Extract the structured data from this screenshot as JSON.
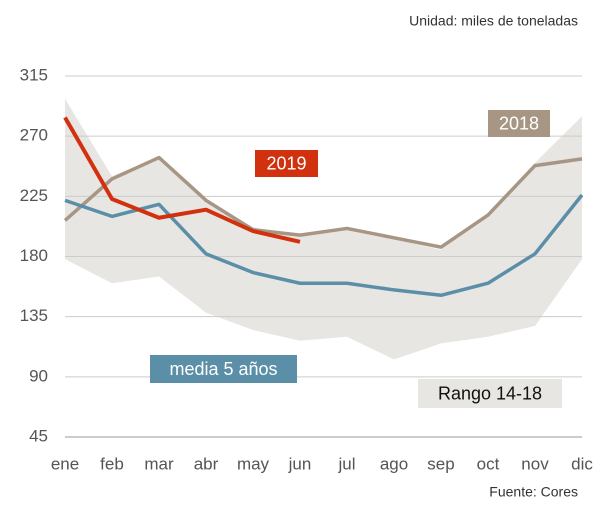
{
  "chart_data": {
    "type": "line",
    "unit_note": "Unidad: miles de toneladas",
    "source": "Fuente: Cores",
    "categories": [
      "ene",
      "feb",
      "mar",
      "abr",
      "may",
      "jun",
      "jul",
      "ago",
      "sep",
      "oct",
      "nov",
      "dic"
    ],
    "range": {
      "name": "Rango 14-18",
      "color": "#e8e6e3",
      "upper": [
        298,
        240,
        255,
        222,
        202,
        195,
        200,
        193,
        185,
        212,
        250,
        285
      ],
      "lower": [
        178,
        160,
        165,
        138,
        125,
        117,
        120,
        103,
        115,
        120,
        128,
        178
      ]
    },
    "series": [
      {
        "name": "2018",
        "color": "#a89684",
        "values": [
          207,
          238,
          254,
          222,
          200,
          196,
          201,
          194,
          187,
          211,
          248,
          253
        ]
      },
      {
        "name": "media 5 años",
        "color": "#5b8fa8",
        "values": [
          222,
          210,
          219,
          182,
          168,
          160,
          160,
          155,
          151,
          160,
          182,
          226
        ]
      },
      {
        "name": "2019",
        "color": "#d1310e",
        "values": [
          284,
          223,
          209,
          215,
          199,
          191,
          null,
          null,
          null,
          null,
          null,
          null
        ]
      }
    ],
    "ylim": [
      45,
      315
    ],
    "yticks": [
      45,
      90,
      135,
      180,
      225,
      270,
      315
    ],
    "grid": true
  }
}
